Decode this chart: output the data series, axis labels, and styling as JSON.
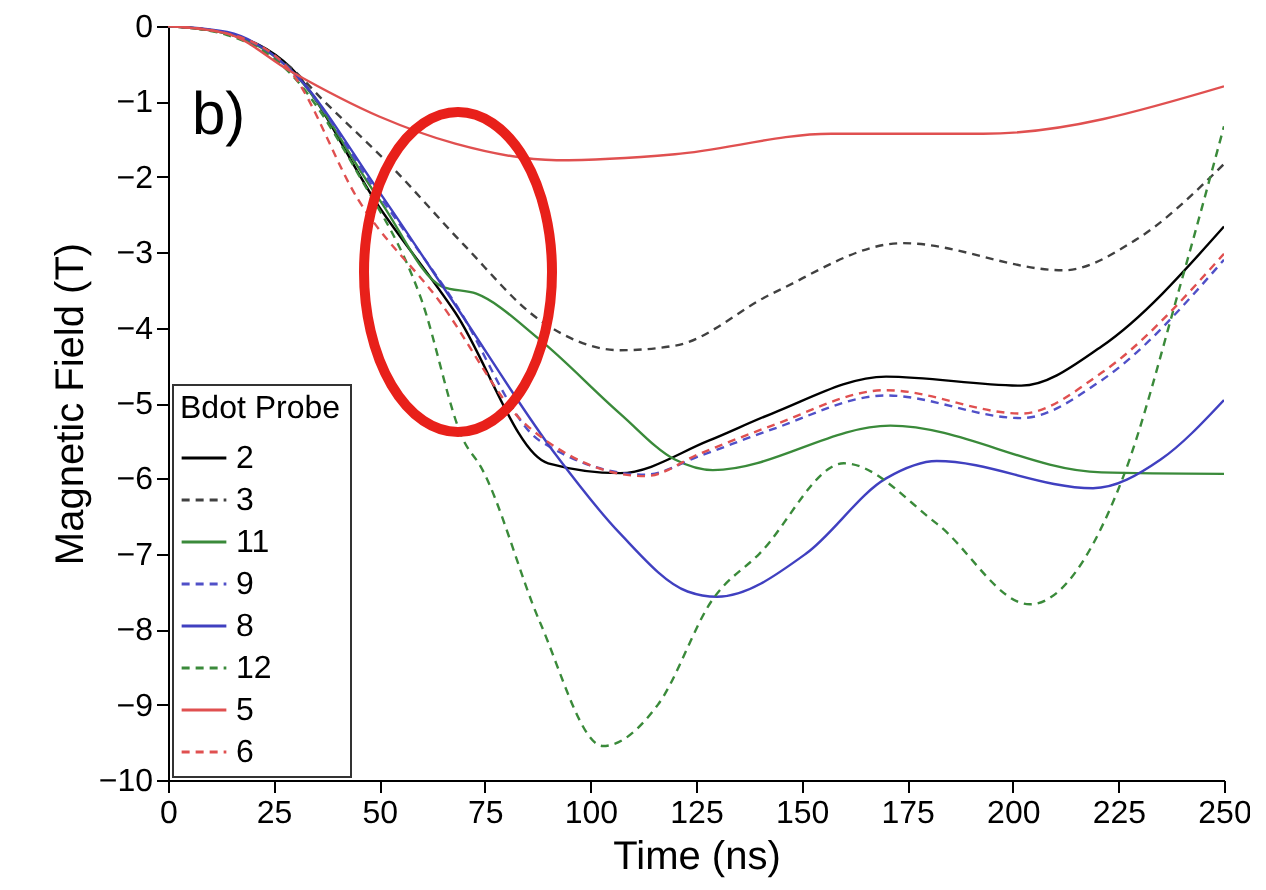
{
  "chart_data": {
    "type": "line",
    "xlabel": "Time (ns)",
    "ylabel": "Magnetic Field (T)",
    "legend_title": "Bdot Probe",
    "legend": "bottom left",
    "grid": false,
    "marker": "none",
    "xlim": [
      0,
      250
    ],
    "xticks": [
      0,
      25,
      50,
      75,
      100,
      125,
      150,
      175,
      200,
      225,
      250
    ],
    "ylim": [
      -10,
      0
    ],
    "yticks": [
      -10,
      -9,
      -8,
      -7,
      -6,
      -5,
      -4,
      -3,
      -2,
      -1,
      0
    ],
    "annotations": [
      "b)"
    ],
    "series": [
      {
        "name": "2",
        "color": "#000000",
        "line_style": "solid",
        "x": [
          0,
          14,
          29,
          50,
          68,
          90,
          107,
          128,
          143,
          170,
          202,
          221,
          250
        ],
        "values": [
          0,
          -0.1,
          -0.55,
          -2.4,
          -3.8,
          -5.8,
          -5.93,
          -5.5,
          -5.14,
          -4.65,
          -4.77,
          -4.25,
          -2.66
        ]
      },
      {
        "name": "3",
        "color": "#404040",
        "line_style": "dashed",
        "x": [
          0,
          14,
          29,
          37,
          53,
          70,
          88,
          107,
          120,
          143,
          174,
          212,
          229,
          250
        ],
        "values": [
          0,
          -0.1,
          -0.55,
          -1.0,
          -1.87,
          -2.9,
          -3.9,
          -4.3,
          -4.24,
          -3.55,
          -2.88,
          -3.24,
          -2.84,
          -1.83
        ]
      },
      {
        "name": "11",
        "color": "#3a8a3a",
        "line_style": "solid",
        "x": [
          0,
          14,
          29,
          50,
          65,
          73,
          88,
          107,
          120,
          129,
          171,
          221,
          250
        ],
        "values": [
          0,
          -0.1,
          -0.58,
          -2.3,
          -3.46,
          -3.55,
          -4.16,
          -5.14,
          -5.75,
          -5.89,
          -5.3,
          -5.92,
          -5.94
        ]
      },
      {
        "name": "9",
        "color": "#5050c8",
        "line_style": "dashed",
        "x": [
          0,
          14,
          29,
          50,
          68,
          88,
          113,
          126,
          143,
          170,
          202,
          221,
          250
        ],
        "values": [
          0,
          -0.1,
          -0.58,
          -2.25,
          -3.68,
          -5.5,
          -5.95,
          -5.7,
          -5.35,
          -4.9,
          -5.2,
          -4.7,
          -3.1
        ]
      },
      {
        "name": "8",
        "color": "#4040c0",
        "line_style": "solid",
        "x": [
          0,
          14,
          29,
          50,
          68,
          92,
          107,
          123,
          130,
          151,
          170,
          182,
          219,
          235,
          250
        ],
        "values": [
          0,
          -0.08,
          -0.58,
          -2.2,
          -3.7,
          -5.7,
          -6.73,
          -7.5,
          -7.57,
          -7.0,
          -6.0,
          -5.77,
          -6.13,
          -5.75,
          -4.96
        ]
      },
      {
        "name": "12",
        "color": "#3a8a3a",
        "line_style": "dashed",
        "x": [
          0,
          14,
          29,
          45,
          60,
          70,
          74,
          88,
          103,
          116,
          129,
          140,
          160,
          182,
          204,
          226,
          240,
          250
        ],
        "values": [
          0,
          -0.12,
          -0.63,
          -1.96,
          -3.63,
          -5.5,
          -5.84,
          -7.9,
          -9.55,
          -9.0,
          -7.6,
          -7.0,
          -5.8,
          -6.6,
          -7.67,
          -6.0,
          -3.37,
          -1.33
        ]
      },
      {
        "name": "5",
        "color": "#e05050",
        "line_style": "solid",
        "x": [
          0,
          14,
          29,
          50,
          68,
          92,
          120,
          157,
          193,
          250
        ],
        "values": [
          0,
          -0.1,
          -0.6,
          -1.2,
          -1.56,
          -1.78,
          -1.7,
          -1.43,
          -1.43,
          -0.8
        ]
      },
      {
        "name": "6",
        "color": "#e05050",
        "line_style": "dashed",
        "x": [
          0,
          14,
          29,
          45,
          64,
          85,
          113,
          126,
          143,
          170,
          202,
          221,
          250
        ],
        "values": [
          0,
          -0.1,
          -0.6,
          -2.3,
          -3.63,
          -5.3,
          -5.97,
          -5.67,
          -5.3,
          -4.83,
          -5.14,
          -4.6,
          -3.02
        ]
      }
    ]
  }
}
